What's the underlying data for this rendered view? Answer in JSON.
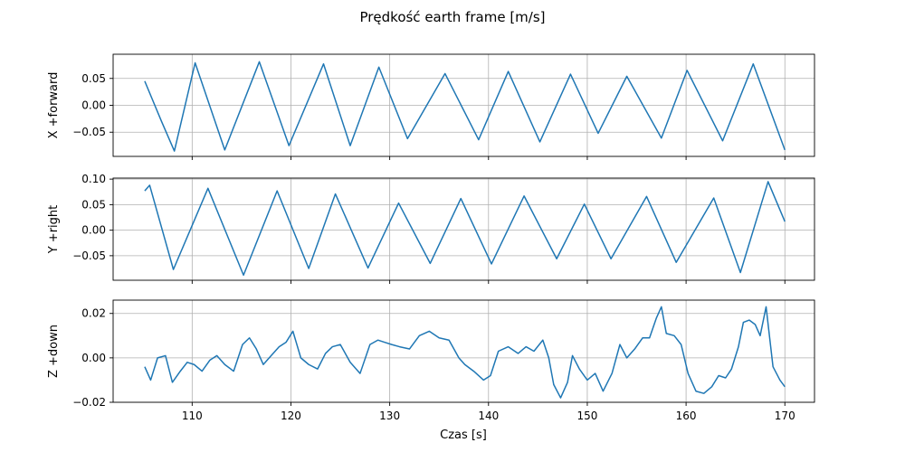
{
  "chart_data": {
    "type": "line",
    "title": "Prędkość earth frame [m/s]",
    "xlabel": "Czas [s]",
    "xlim": [
      102,
      173
    ],
    "x_ticks": [
      110,
      120,
      130,
      140,
      150,
      160,
      170
    ],
    "grid": true,
    "line_color": "#1f77b4",
    "subplots": [
      {
        "ylabel": "X +forward",
        "ylim": [
          -0.095,
          0.095
        ],
        "y_ticks": [
          -0.05,
          0.0,
          0.05
        ],
        "y_tick_labels": [
          "−0.05",
          "0.00",
          "0.05"
        ],
        "series": [
          {
            "x": [
              105.2,
              106.9,
              108.2,
              110.3,
              113.3,
              116.8,
              119.8,
              123.3,
              126.0,
              128.9,
              131.8,
              135.6,
              139.0,
              142.0,
              145.2,
              148.3,
              151.1,
              154.0,
              157.5,
              160.1,
              163.7,
              166.8,
              170.0
            ],
            "y": [
              0.045,
              -0.03,
              -0.085,
              0.079,
              -0.083,
              0.081,
              -0.075,
              0.077,
              -0.075,
              0.071,
              -0.062,
              0.059,
              -0.064,
              0.063,
              -0.068,
              0.058,
              -0.052,
              0.054,
              -0.061,
              0.065,
              -0.066,
              0.077,
              -0.083
            ]
          }
        ]
      },
      {
        "ylabel": "Y +right",
        "ylim": [
          -0.098,
          0.102
        ],
        "y_ticks": [
          -0.05,
          0.0,
          0.05,
          0.1
        ],
        "y_tick_labels": [
          "−0.05",
          "0.00",
          "0.05",
          "0.10"
        ],
        "series": [
          {
            "x": [
              105.2,
              105.7,
              108.1,
              111.6,
              115.2,
              118.6,
              121.8,
              124.5,
              127.8,
              130.9,
              134.1,
              137.2,
              140.3,
              143.6,
              146.9,
              149.7,
              152.4,
              156.0,
              159.0,
              162.8,
              165.5,
              168.3,
              170.0
            ],
            "y": [
              0.077,
              0.088,
              -0.077,
              0.082,
              -0.088,
              0.077,
              -0.075,
              0.071,
              -0.074,
              0.053,
              -0.065,
              0.062,
              -0.066,
              0.067,
              -0.056,
              0.051,
              -0.056,
              0.066,
              -0.063,
              0.063,
              -0.083,
              0.095,
              0.017
            ]
          }
        ]
      },
      {
        "ylabel": "Z +down",
        "ylim": [
          -0.02,
          0.026
        ],
        "y_ticks": [
          -0.02,
          0.0,
          0.02
        ],
        "y_tick_labels": [
          "−0.02",
          "0.00",
          "0.02"
        ],
        "series": [
          {
            "x": [
              105.2,
              105.8,
              106.5,
              107.3,
              108.0,
              108.8,
              109.5,
              110.2,
              111.0,
              111.8,
              112.5,
              113.3,
              114.2,
              115.1,
              115.8,
              116.5,
              117.2,
              118.0,
              118.8,
              119.5,
              120.2,
              121.0,
              121.8,
              122.7,
              123.5,
              124.2,
              125.0,
              126.0,
              127.0,
              128.0,
              128.8,
              129.5,
              130.2,
              131.0,
              132.0,
              133.0,
              134.0,
              135.0,
              136.0,
              137.0,
              137.6,
              138.5,
              139.5,
              140.2,
              141.0,
              142.0,
              143.0,
              143.8,
              144.6,
              145.5,
              146.1,
              146.6,
              147.3,
              148.0,
              148.5,
              149.2,
              150.0,
              150.8,
              151.6,
              152.5,
              153.3,
              154.0,
              154.8,
              155.6,
              156.3,
              157.0,
              157.5,
              158.0,
              158.8,
              159.5,
              160.2,
              161.0,
              161.8,
              162.6,
              163.3,
              164.0,
              164.6,
              165.3,
              165.8,
              166.4,
              167.0,
              167.5,
              168.1,
              168.8,
              169.5,
              170.0
            ],
            "y": [
              -0.004,
              -0.01,
              0.0,
              0.001,
              -0.011,
              -0.006,
              -0.002,
              -0.003,
              -0.006,
              -0.001,
              0.001,
              -0.003,
              -0.006,
              0.006,
              0.009,
              0.004,
              -0.003,
              0.001,
              0.005,
              0.007,
              0.012,
              0.0,
              -0.003,
              -0.005,
              0.002,
              0.005,
              0.006,
              -0.002,
              -0.007,
              0.006,
              0.008,
              0.007,
              0.006,
              0.005,
              0.004,
              0.01,
              0.012,
              0.009,
              0.008,
              0.0,
              -0.003,
              -0.006,
              -0.01,
              -0.008,
              0.003,
              0.005,
              0.002,
              0.005,
              0.003,
              0.008,
              0.0,
              -0.012,
              -0.018,
              -0.011,
              0.001,
              -0.005,
              -0.01,
              -0.007,
              -0.015,
              -0.007,
              0.006,
              0.0,
              0.004,
              0.009,
              0.009,
              0.018,
              0.023,
              0.011,
              0.01,
              0.006,
              -0.007,
              -0.015,
              -0.016,
              -0.013,
              -0.008,
              -0.009,
              -0.005,
              0.005,
              0.016,
              0.017,
              0.015,
              0.01,
              0.023,
              -0.004,
              -0.01,
              -0.013
            ]
          }
        ]
      }
    ]
  }
}
